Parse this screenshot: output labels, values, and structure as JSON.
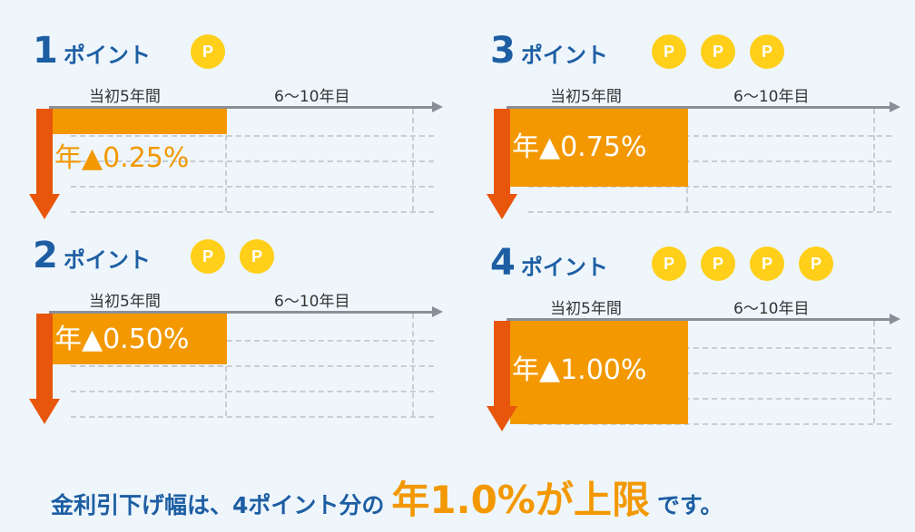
{
  "colors": {
    "title": "#1d5ea3",
    "coin": "#ffcf1a",
    "bar": "#f39800",
    "arrow": "#e8560c",
    "timeline": "#8a8f97"
  },
  "panels": [
    {
      "num": "1",
      "word": "ポイント",
      "coin_label": "P",
      "coins": 1,
      "initial_label": "当初5年間",
      "later_label": "6～10年目",
      "rate": "年▲0.25%",
      "rate_fraction_of_max": 0.25
    },
    {
      "num": "3",
      "word": "ポイント",
      "coin_label": "P",
      "coins": 3,
      "initial_label": "当初5年間",
      "later_label": "6～10年目",
      "rate": "年▲0.75%",
      "rate_fraction_of_max": 0.75
    },
    {
      "num": "2",
      "word": "ポイント",
      "coin_label": "P",
      "coins": 2,
      "initial_label": "当初5年間",
      "later_label": "6～10年目",
      "rate": "年▲0.50%",
      "rate_fraction_of_max": 0.5
    },
    {
      "num": "4",
      "word": "ポイント",
      "coin_label": "P",
      "coins": 4,
      "initial_label": "当初5年間",
      "later_label": "6～10年目",
      "rate": "年▲1.00%",
      "rate_fraction_of_max": 1.0
    }
  ],
  "footer": {
    "pre": "金利引下げ幅は、4ポイント分の",
    "highlight": "年1.0%が上限",
    "post": "です。"
  }
}
